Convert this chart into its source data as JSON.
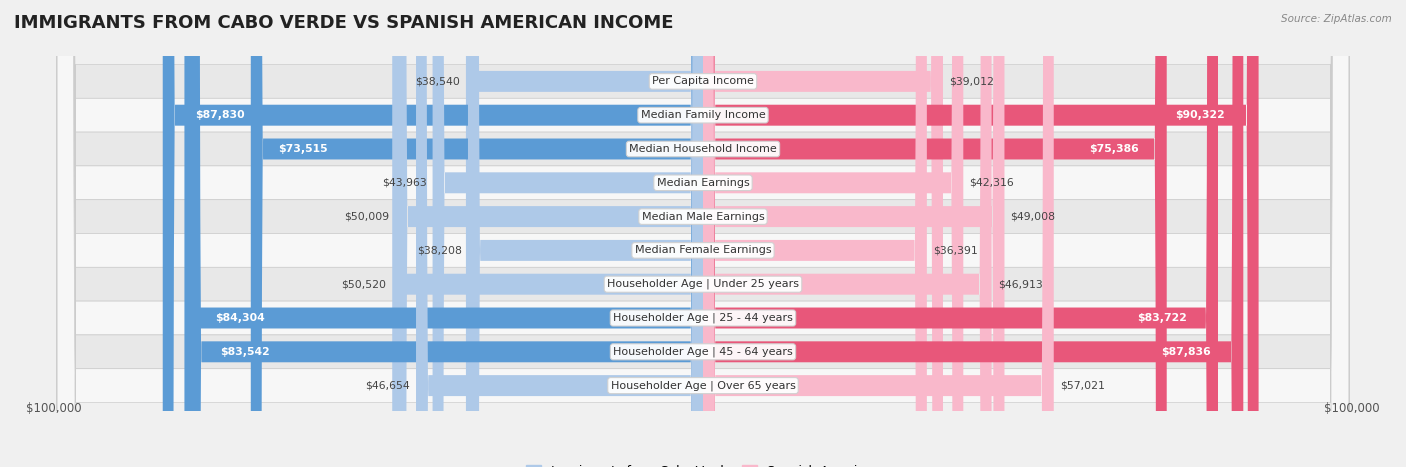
{
  "title": "IMMIGRANTS FROM CABO VERDE VS SPANISH AMERICAN INCOME",
  "source": "Source: ZipAtlas.com",
  "categories": [
    "Per Capita Income",
    "Median Family Income",
    "Median Household Income",
    "Median Earnings",
    "Median Male Earnings",
    "Median Female Earnings",
    "Householder Age | Under 25 years",
    "Householder Age | 25 - 44 years",
    "Householder Age | 45 - 64 years",
    "Householder Age | Over 65 years"
  ],
  "cabo_verde_values": [
    38540,
    87830,
    73515,
    43963,
    50009,
    38208,
    50520,
    84304,
    83542,
    46654
  ],
  "spanish_american_values": [
    39012,
    90322,
    75386,
    42316,
    49008,
    36391,
    46913,
    83722,
    87836,
    57021
  ],
  "cabo_verde_light": "#aec9e8",
  "cabo_verde_dark": "#5b9bd5",
  "spanish_american_light": "#f9b8cb",
  "spanish_american_dark": "#e8577a",
  "max_value": 100000,
  "bg_color": "#f0f0f0",
  "row_light": "#f7f7f7",
  "row_dark": "#e8e8e8",
  "title_fontsize": 13,
  "figsize": [
    14.06,
    4.67
  ],
  "dpi": 100
}
